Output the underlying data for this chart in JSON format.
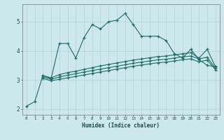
{
  "xlabel": "Humidex (Indice chaleur)",
  "background_color": "#cce8ec",
  "grid_color": "#b8d4d8",
  "line_color": "#1e6b68",
  "xlim": [
    -0.5,
    23.5
  ],
  "ylim": [
    1.8,
    5.6
  ],
  "xticks": [
    0,
    1,
    2,
    3,
    4,
    5,
    6,
    7,
    8,
    9,
    10,
    11,
    12,
    13,
    14,
    15,
    16,
    17,
    18,
    19,
    20,
    21,
    22,
    23
  ],
  "yticks": [
    2,
    3,
    4,
    5
  ],
  "line1_x": [
    0,
    1,
    2,
    3,
    4,
    5,
    6,
    7,
    8,
    9,
    10,
    11,
    12,
    13,
    14,
    15,
    16,
    17,
    18,
    19,
    20,
    21,
    22,
    23
  ],
  "line1_y": [
    2.1,
    2.25,
    3.15,
    3.05,
    4.25,
    4.25,
    3.75,
    4.45,
    4.9,
    4.75,
    5.0,
    5.05,
    5.28,
    4.9,
    4.5,
    4.5,
    4.5,
    4.35,
    3.9,
    3.75,
    4.05,
    3.7,
    3.5,
    3.45
  ],
  "line2_x": [
    2,
    3,
    4,
    5,
    6,
    7,
    8,
    9,
    10,
    11,
    12,
    13,
    14,
    15,
    16,
    17,
    18,
    19,
    20,
    21,
    22,
    23
  ],
  "line2_y": [
    3.15,
    3.07,
    3.18,
    3.25,
    3.3,
    3.36,
    3.42,
    3.48,
    3.53,
    3.58,
    3.63,
    3.68,
    3.72,
    3.76,
    3.8,
    3.82,
    3.86,
    3.9,
    3.93,
    3.75,
    4.05,
    3.45
  ],
  "line3_x": [
    2,
    3,
    4,
    5,
    6,
    7,
    8,
    9,
    10,
    11,
    12,
    13,
    14,
    15,
    16,
    17,
    18,
    19,
    20,
    21,
    22,
    23
  ],
  "line3_y": [
    3.1,
    3.02,
    3.1,
    3.16,
    3.21,
    3.27,
    3.32,
    3.37,
    3.42,
    3.47,
    3.52,
    3.57,
    3.61,
    3.65,
    3.69,
    3.71,
    3.75,
    3.79,
    3.82,
    3.72,
    3.78,
    3.4
  ],
  "line4_x": [
    2,
    3,
    4,
    5,
    6,
    7,
    8,
    9,
    10,
    11,
    12,
    13,
    14,
    15,
    16,
    17,
    18,
    19,
    20,
    21,
    22,
    23
  ],
  "line4_y": [
    3.05,
    2.97,
    3.02,
    3.07,
    3.12,
    3.17,
    3.22,
    3.27,
    3.32,
    3.37,
    3.42,
    3.47,
    3.51,
    3.55,
    3.59,
    3.61,
    3.65,
    3.69,
    3.72,
    3.62,
    3.68,
    3.35
  ]
}
